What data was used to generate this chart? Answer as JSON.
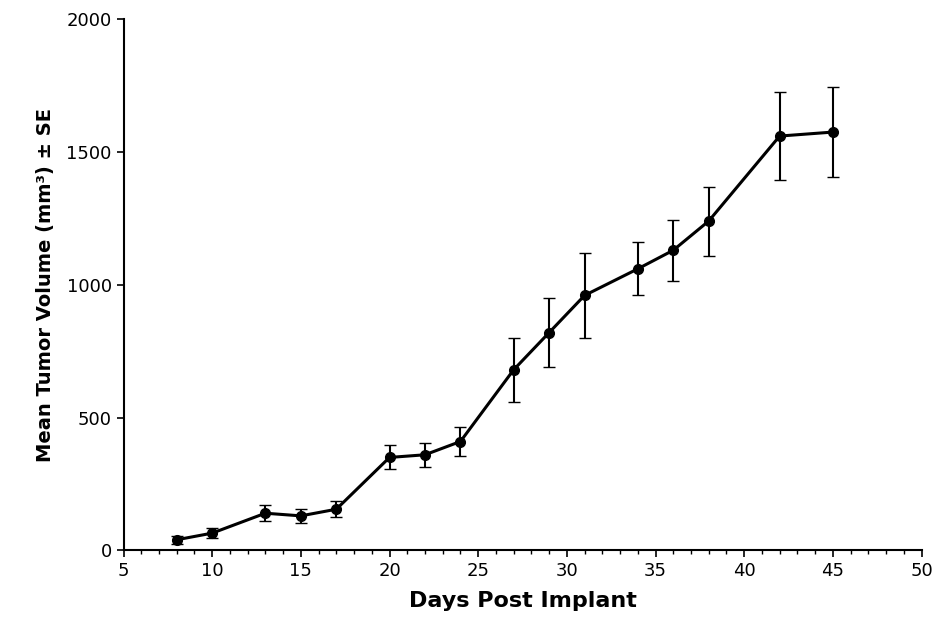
{
  "x": [
    8,
    10,
    13,
    15,
    17,
    20,
    22,
    24,
    27,
    29,
    31,
    34,
    36,
    38,
    42,
    45
  ],
  "y": [
    40,
    65,
    140,
    130,
    155,
    350,
    360,
    410,
    680,
    820,
    960,
    1060,
    1130,
    1240,
    1560,
    1575
  ],
  "yerr": [
    15,
    20,
    30,
    25,
    30,
    45,
    45,
    55,
    120,
    130,
    160,
    100,
    115,
    130,
    165,
    170
  ],
  "xlabel": "Days Post Implant",
  "ylabel": "Mean Tumor Volume (mm³) ± SE",
  "xlim": [
    5,
    50
  ],
  "ylim": [
    0,
    2000
  ],
  "xticks": [
    5,
    10,
    15,
    20,
    25,
    30,
    35,
    40,
    45,
    50
  ],
  "yticks": [
    0,
    500,
    1000,
    1500,
    2000
  ],
  "line_color": "#000000",
  "marker": "o",
  "markersize": 7,
  "linewidth": 2.2,
  "capsize": 4,
  "elinewidth": 1.5,
  "background_color": "#ffffff",
  "xlabel_fontsize": 16,
  "ylabel_fontsize": 14,
  "tick_fontsize": 13
}
